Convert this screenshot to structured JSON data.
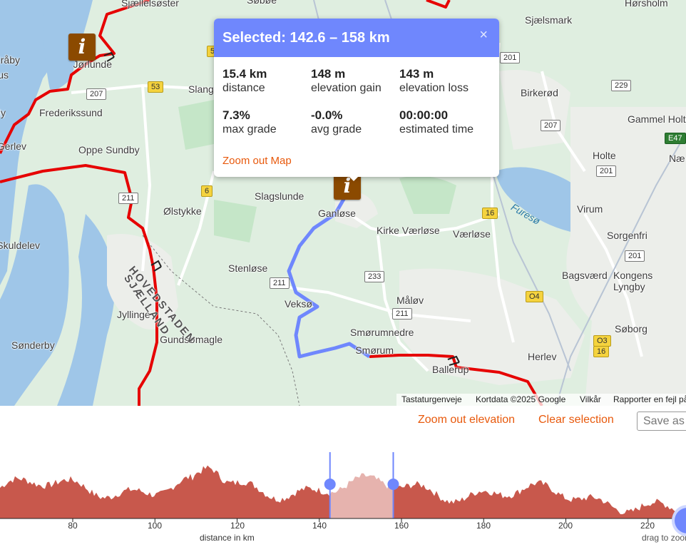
{
  "popup": {
    "title": "Selected: 142.6 – 158 km",
    "close_label": "×",
    "stats": [
      {
        "value": "15.4 km",
        "label": "distance"
      },
      {
        "value": "148 m",
        "label": "elevation gain"
      },
      {
        "value": "143 m",
        "label": "elevation loss"
      },
      {
        "value": "7.3%",
        "label": "max grade"
      },
      {
        "value": "-0.0%",
        "label": "avg grade"
      },
      {
        "value": "00:00:00",
        "label": "estimated time"
      }
    ],
    "zoom_out_map": "Zoom out Map"
  },
  "map": {
    "places": [
      "Sjællelsøster",
      "Søbøe",
      "Hørsholm",
      "Sjælsmark",
      "Frederikssund",
      "Slangerup",
      "Birkerød",
      "Oppe Sundby",
      "Gammel Holte",
      "Holte",
      "Slagslunde",
      "Ølstykke",
      "Ganløse",
      "Kirke Værløse",
      "Værløse",
      "Virum",
      "Sorgenfri",
      "Stenløse",
      "Bagsværd",
      "Kongens Lyngby",
      "Måløv",
      "Veksø",
      "Jyllinge",
      "Smørumnedre",
      "Smørum",
      "Søborg",
      "Sønderby",
      "Gundsømagle",
      "Herlev",
      "Ballerup",
      "Skuldelev",
      "Gerlev",
      "Kråby",
      "Kulhus",
      "Jørlunde",
      "Ny"
    ],
    "regions": [
      "HOVEDSTADEN",
      "SJÆLLAND"
    ],
    "lake": "Furesø",
    "road_shields": [
      "207",
      "53",
      "5",
      "201",
      "229",
      "207",
      "E47",
      "201",
      "211",
      "6",
      "16",
      "233",
      "211",
      "211",
      "201",
      "O4",
      "O3",
      "16",
      "Næ"
    ],
    "poi_icon": "info-icon",
    "route_color": "#e60000",
    "selection_color": "#6f87fd",
    "attribution": {
      "keyboard": "Tastaturgenveje",
      "data": "Kortdata ©2025 Google",
      "terms": "Vilkår",
      "report": "Rapporter en fejl på kortet"
    }
  },
  "toolbar": {
    "zoom_out_elevation": "Zoom out elevation",
    "clear_selection": "Clear selection",
    "save_placeholder": "Save as"
  },
  "elevation": {
    "x_ticks": [
      "80",
      "100",
      "120",
      "140",
      "160",
      "180",
      "200",
      "220"
    ],
    "x_title": "distance in km",
    "drag_hint": "drag to zoom",
    "selection": {
      "start_km": 142.6,
      "end_km": 158
    },
    "fill_color": "#c8584c"
  }
}
